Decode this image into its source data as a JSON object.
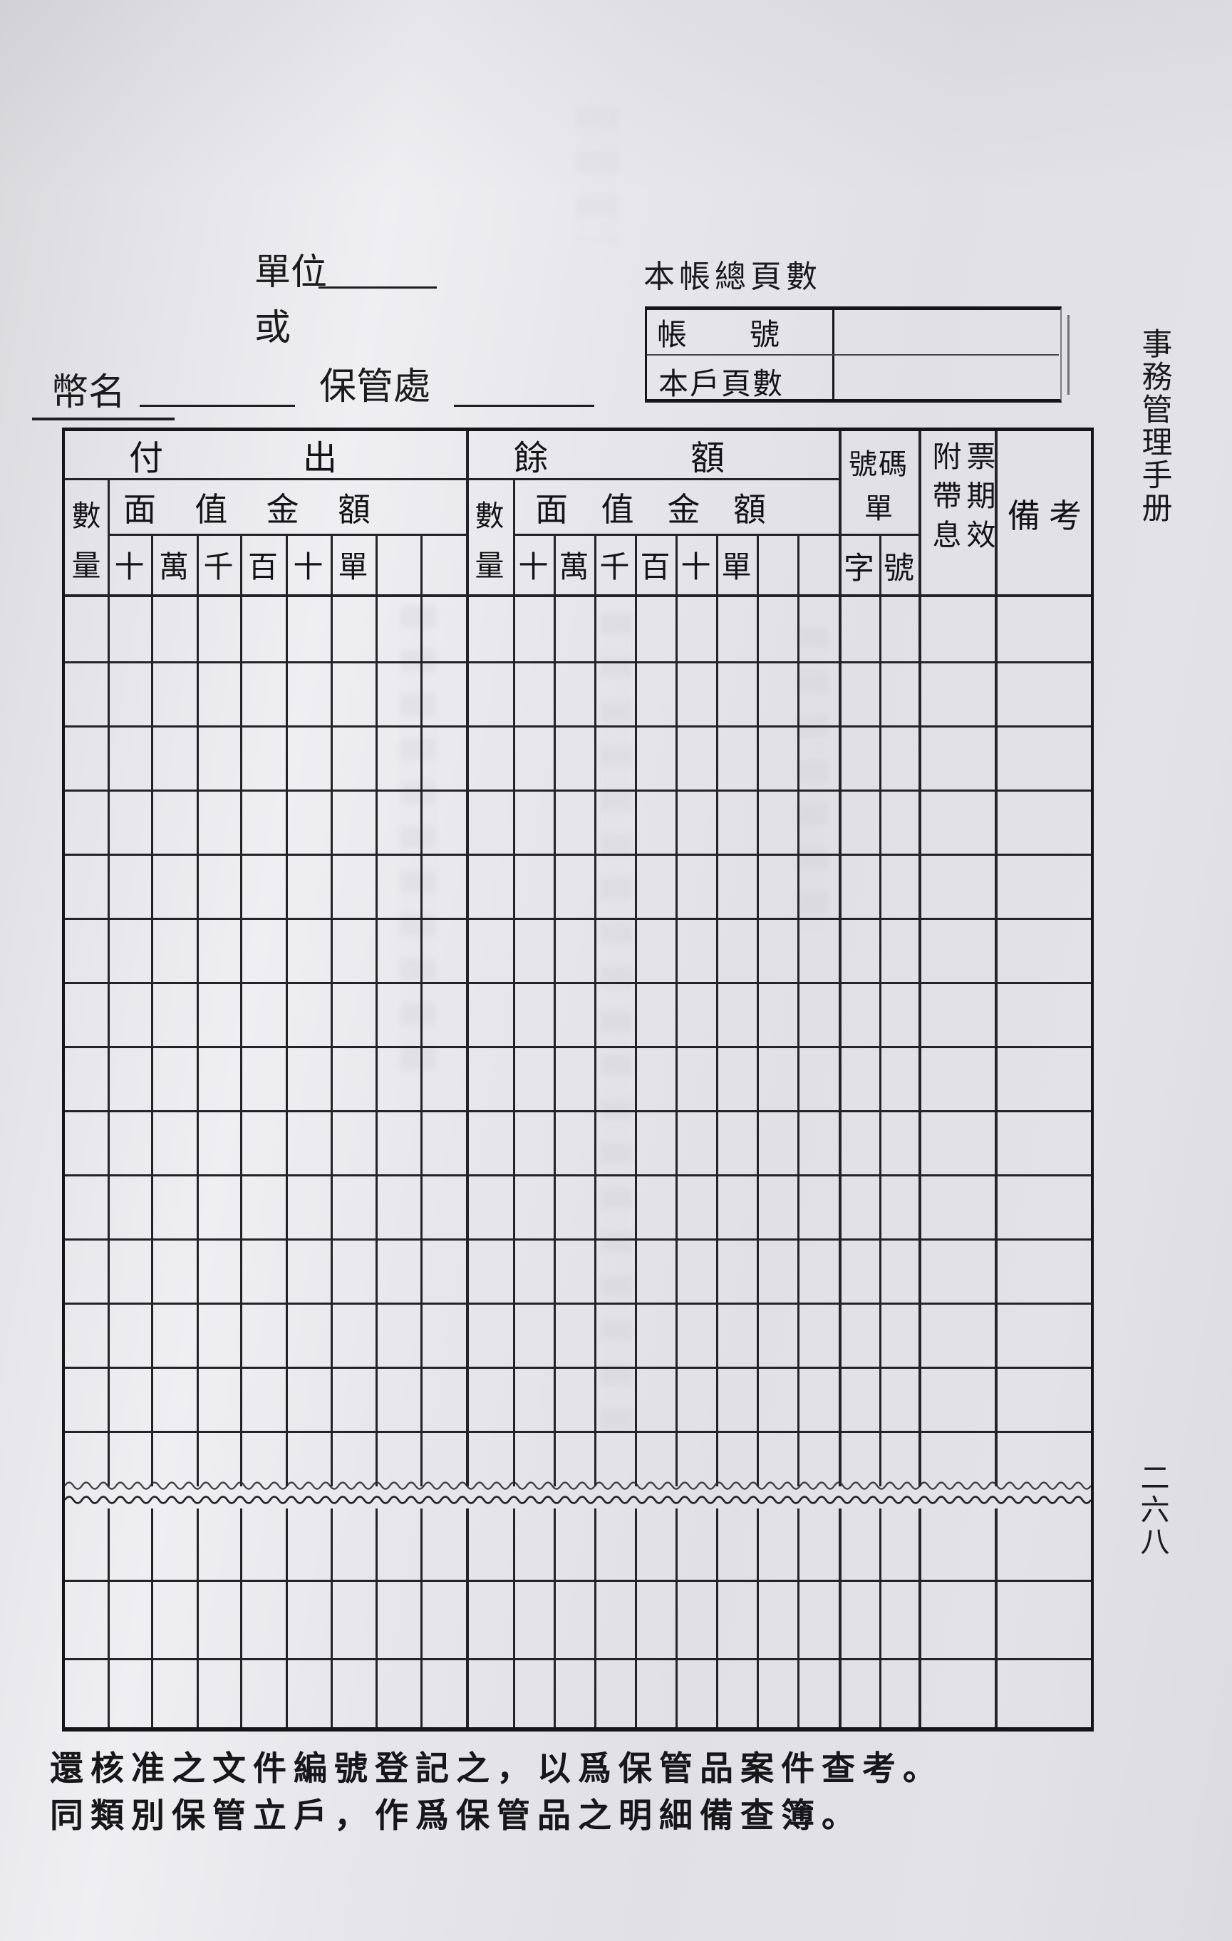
{
  "page": {
    "side_title": "事務管理手册",
    "page_number": "二六八"
  },
  "top": {
    "unit_label": "單位",
    "or_label": "或",
    "currency_label": "幣名",
    "custody_label": "保管處",
    "total_pages_label": "本帳總頁數",
    "account_no_label": "帳號",
    "account_pages_label": "本戶頁數"
  },
  "table": {
    "payout_group": "付出",
    "balance_group": "餘額",
    "quantity": "數量",
    "face_value": "面值金額",
    "digits": [
      "十",
      "萬",
      "千",
      "百",
      "十",
      "單"
    ],
    "ticket_group_line1": "號碼",
    "ticket_group_line2": "單",
    "ticket_prefix": "字",
    "ticket_number": "號",
    "coupon_col_left": "附帶息",
    "coupon_col_right": "票期效",
    "remarks": "備考"
  },
  "footnotes": {
    "line1": "還核准之文件編號登記之，以爲保管品案件查考。",
    "line2": "同類別保管立戶，作爲保管品之明細備查簿。"
  }
}
